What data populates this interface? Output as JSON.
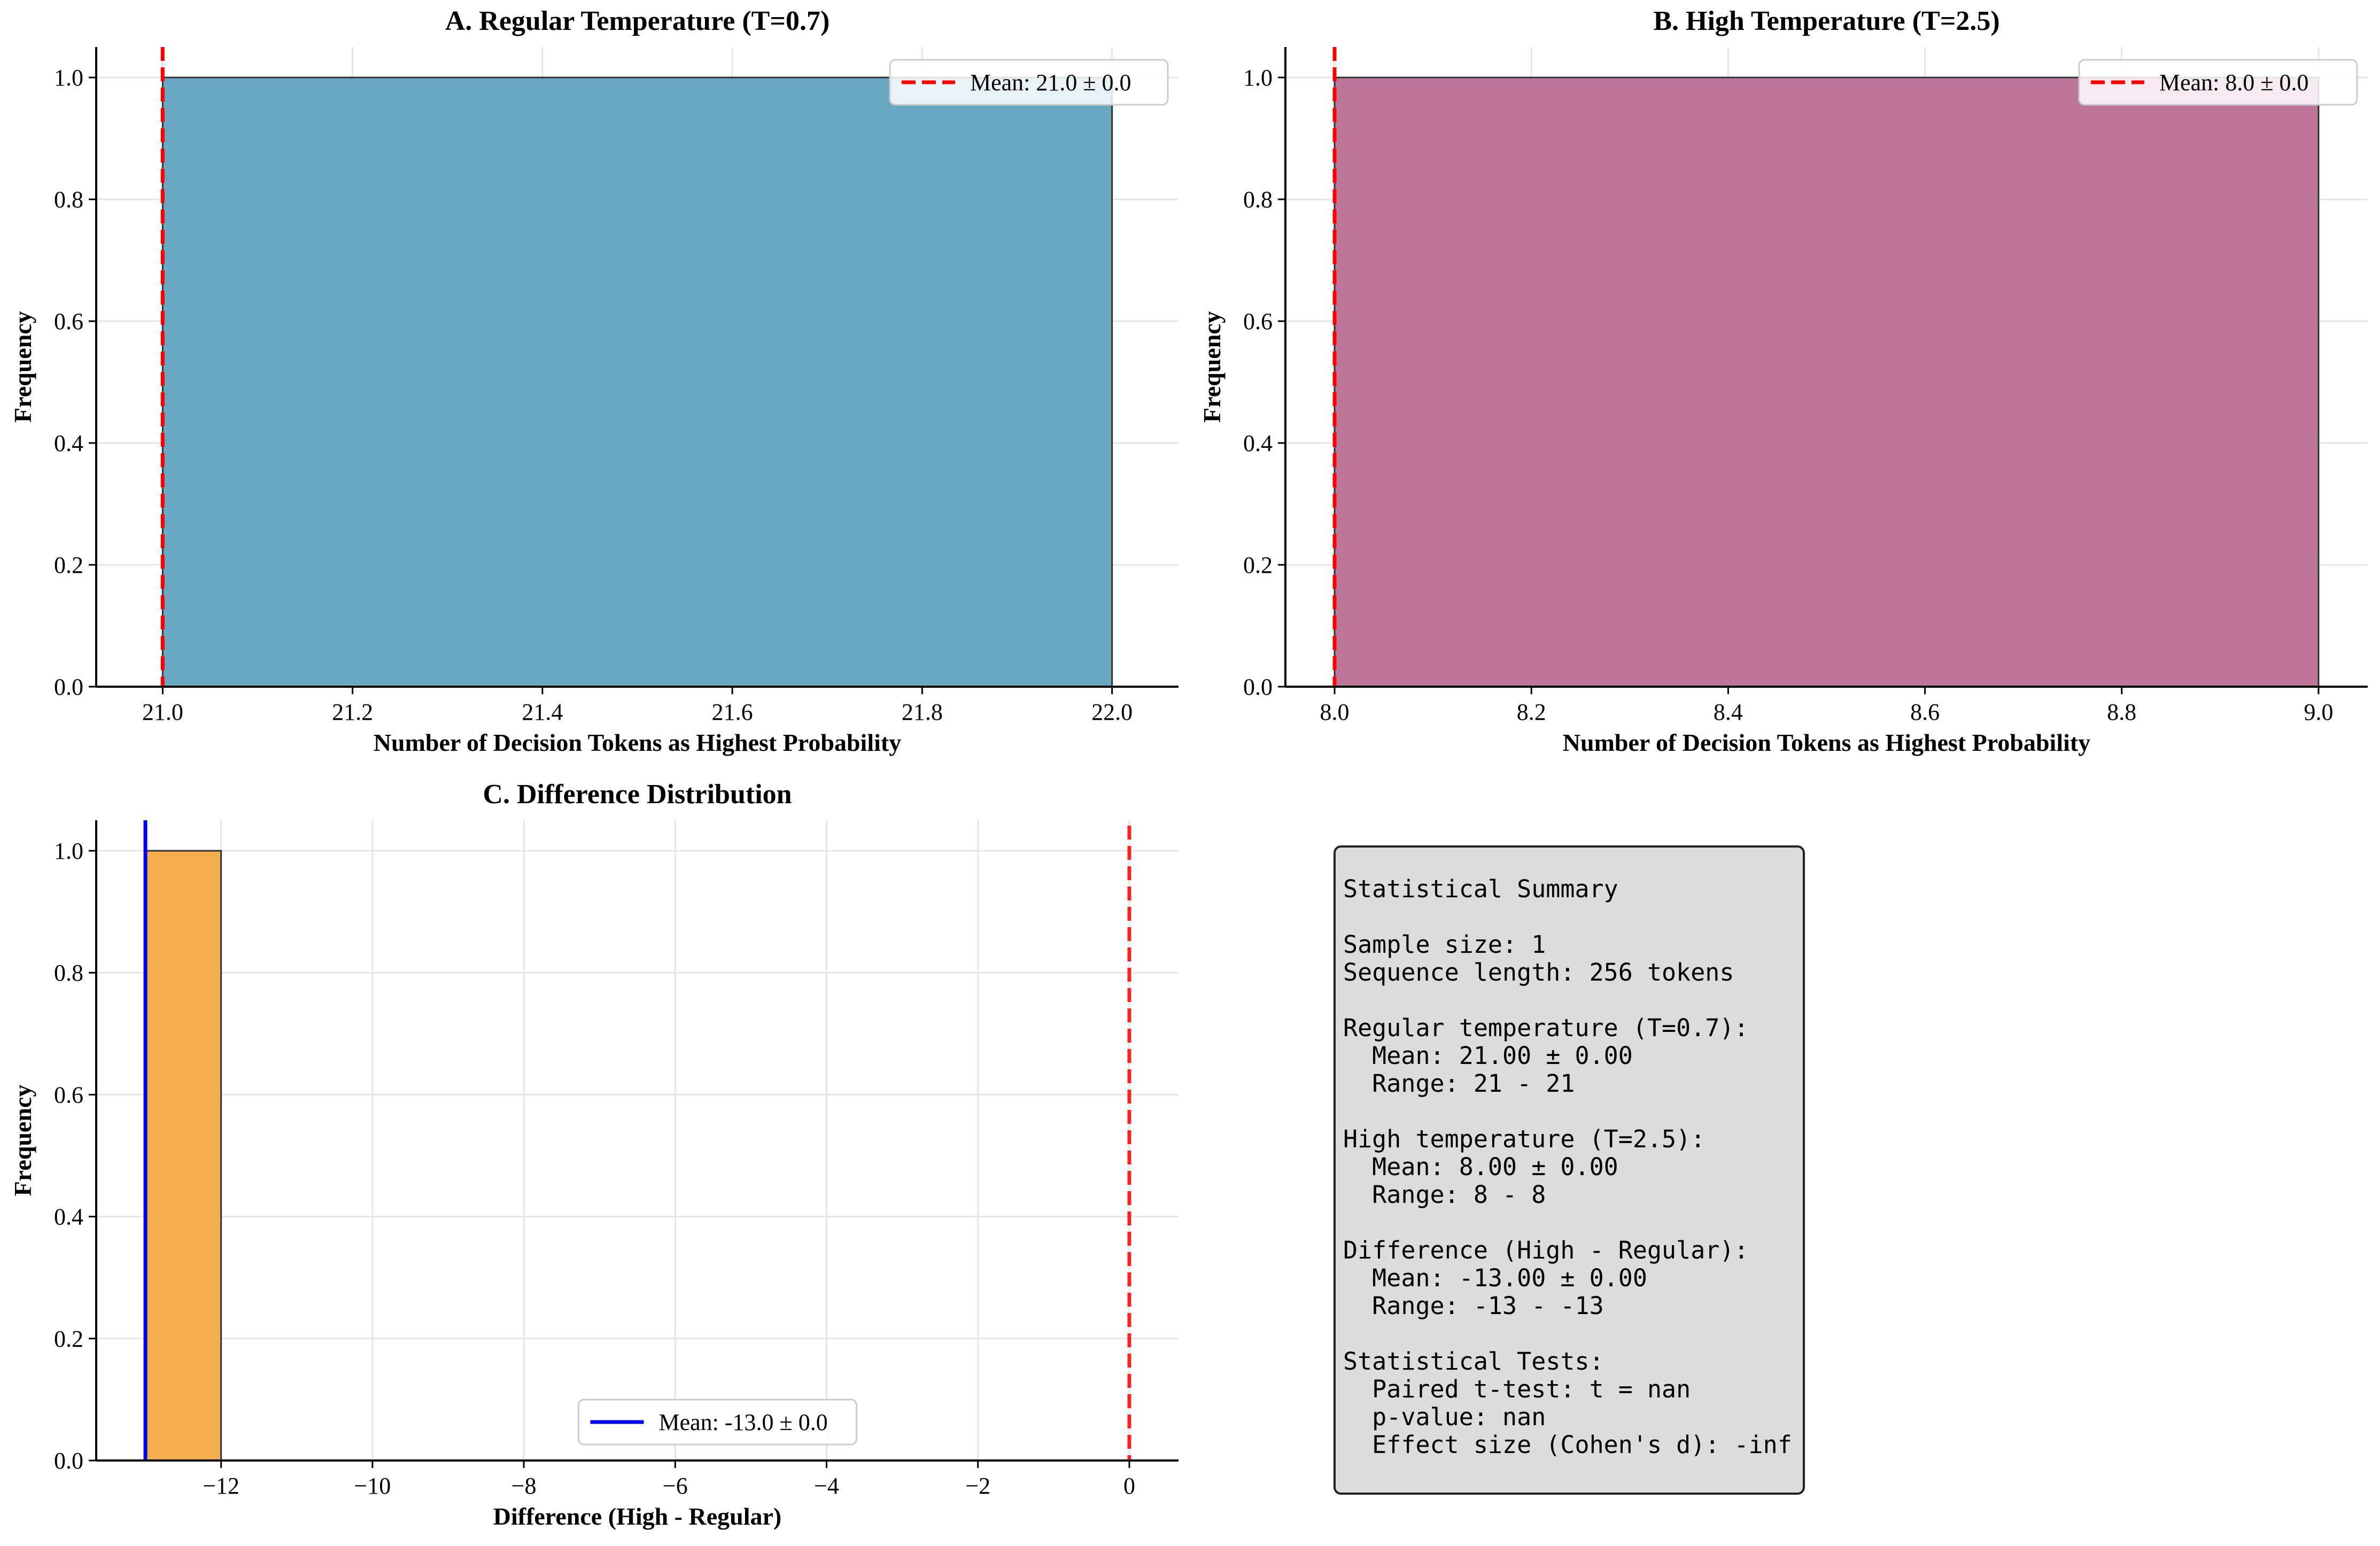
{
  "chart_data": [
    {
      "type": "bar",
      "title": "A. Regular Temperature (T=0.7)",
      "xlabel": "Number of Decision Tokens as Highest Probability",
      "ylabel": "Frequency",
      "xlim": [
        20.93,
        22.07
      ],
      "ylim": [
        0,
        1.05
      ],
      "xticks": [
        "21.0",
        "21.2",
        "21.4",
        "21.6",
        "21.8",
        "22.0"
      ],
      "yticks": [
        "0.0",
        "0.2",
        "0.4",
        "0.6",
        "0.8",
        "1.0"
      ],
      "bins": [
        {
          "start": 21.0,
          "end": 22.0,
          "value": 1.0
        }
      ],
      "bar_color": "#6aa8c3",
      "mean_line": {
        "x": 21.0,
        "color": "#ff0000",
        "style": "dashed",
        "label": "Mean: 21.0 ± 0.0"
      },
      "legend_position": "top-right",
      "grid": true
    },
    {
      "type": "bar",
      "title": "B. High Temperature (T=2.5)",
      "xlabel": "Number of Decision Tokens as Highest Probability",
      "ylabel": "Frequency",
      "xlim": [
        7.95,
        9.05
      ],
      "ylim": [
        0,
        1.05
      ],
      "xticks": [
        "8.0",
        "8.2",
        "8.4",
        "8.6",
        "8.8",
        "9.0"
      ],
      "yticks": [
        "0.0",
        "0.2",
        "0.4",
        "0.6",
        "0.8",
        "1.0"
      ],
      "bins": [
        {
          "start": 8.0,
          "end": 9.0,
          "value": 1.0
        }
      ],
      "bar_color": "#bd7598",
      "mean_line": {
        "x": 8.0,
        "color": "#ff0000",
        "style": "dashed",
        "label": "Mean: 8.0 ± 0.0"
      },
      "legend_position": "top-right",
      "grid": true
    },
    {
      "type": "bar",
      "title": "C. Difference Distribution",
      "xlabel": "Difference (High - Regular)",
      "ylabel": "Frequency",
      "xlim": [
        -13.65,
        0.65
      ],
      "ylim": [
        0,
        1.05
      ],
      "xticks": [
        "−12",
        "−10",
        "−8",
        "−6",
        "−4",
        "−2",
        "0"
      ],
      "xtick_values": [
        -12,
        -10,
        -8,
        -6,
        -4,
        -2,
        0
      ],
      "yticks": [
        "0.0",
        "0.2",
        "0.4",
        "0.6",
        "0.8",
        "1.0"
      ],
      "bins": [
        {
          "start": -13.0,
          "end": -12.0,
          "value": 1.0
        }
      ],
      "bar_color": "#f4ae4e",
      "mean_line": {
        "x": -13.0,
        "color": "#0000ee",
        "style": "solid",
        "label": "Mean: -13.0 ± 0.0"
      },
      "zero_line": {
        "x": 0,
        "color": "#ff0000",
        "style": "dashed"
      },
      "legend_position": "lower-center",
      "grid": true
    }
  ],
  "summary": {
    "lines": [
      "Statistical Summary",
      "",
      "Sample size: 1",
      "Sequence length: 256 tokens",
      "",
      "Regular temperature (T=0.7):",
      "  Mean: 21.00 ± 0.00",
      "  Range: 21 - 21",
      "",
      "High temperature (T=2.5):",
      "  Mean: 8.00 ± 0.00",
      "  Range: 8 - 8",
      "",
      "Difference (High - Regular):",
      "  Mean: -13.00 ± 0.00",
      "  Range: -13 - -13",
      "",
      "Statistical Tests:",
      "  Paired t-test: t = nan",
      "  p-value: nan",
      "  Effect size (Cohen's d): -inf"
    ]
  }
}
